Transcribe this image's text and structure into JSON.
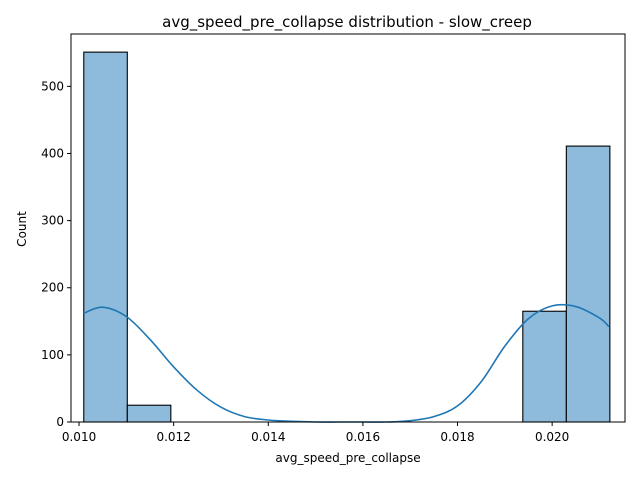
{
  "chart_data": {
    "type": "bar",
    "title": "avg_speed_pre_collapse distribution - slow_creep",
    "xlabel": "avg_speed_pre_collapse",
    "ylabel": "Count",
    "xlim": [
      0.00983,
      0.02154
    ],
    "ylim": [
      0,
      578
    ],
    "xticks": [
      0.01,
      0.012,
      0.014,
      0.016,
      0.018,
      0.02
    ],
    "xtick_labels": [
      "0.010",
      "0.012",
      "0.014",
      "0.016",
      "0.018",
      "0.020"
    ],
    "yticks": [
      0,
      100,
      200,
      300,
      400,
      500
    ],
    "ytick_labels": [
      "0",
      "100",
      "200",
      "300",
      "400",
      "500"
    ],
    "bins": [
      {
        "x0": 0.0101,
        "x1": 0.01102,
        "count": 551
      },
      {
        "x0": 0.01102,
        "x1": 0.01194,
        "count": 25
      },
      {
        "x0": 0.01194,
        "x1": 0.01286,
        "count": 0
      },
      {
        "x0": 0.01286,
        "x1": 0.01378,
        "count": 0
      },
      {
        "x0": 0.01378,
        "x1": 0.0147,
        "count": 0
      },
      {
        "x0": 0.0147,
        "x1": 0.01562,
        "count": 0
      },
      {
        "x0": 0.01562,
        "x1": 0.01654,
        "count": 0
      },
      {
        "x0": 0.01654,
        "x1": 0.01746,
        "count": 0
      },
      {
        "x0": 0.01746,
        "x1": 0.01838,
        "count": 0
      },
      {
        "x0": 0.01838,
        "x1": 0.0193,
        "count": 0
      },
      {
        "x0": 0.01938,
        "x1": 0.0203,
        "count": 165
      },
      {
        "x0": 0.0203,
        "x1": 0.02122,
        "count": 411
      }
    ],
    "kde": {
      "x": [
        0.0101,
        0.0105,
        0.011,
        0.0115,
        0.012,
        0.0125,
        0.013,
        0.0135,
        0.014,
        0.0145,
        0.015,
        0.0155,
        0.016,
        0.0165,
        0.017,
        0.0175,
        0.018,
        0.0185,
        0.019,
        0.0195,
        0.02,
        0.0205,
        0.021,
        0.0212
      ],
      "y": [
        162,
        171,
        157,
        123,
        82,
        47,
        22,
        8,
        3,
        1,
        0,
        0,
        0,
        0,
        2,
        8,
        24,
        60,
        113,
        154,
        173,
        172,
        155,
        142
      ]
    },
    "grid": false,
    "colors": {
      "bar_fill": "#8ebbdb",
      "bar_edge": "#000000",
      "kde_line": "#1f77b4"
    }
  }
}
